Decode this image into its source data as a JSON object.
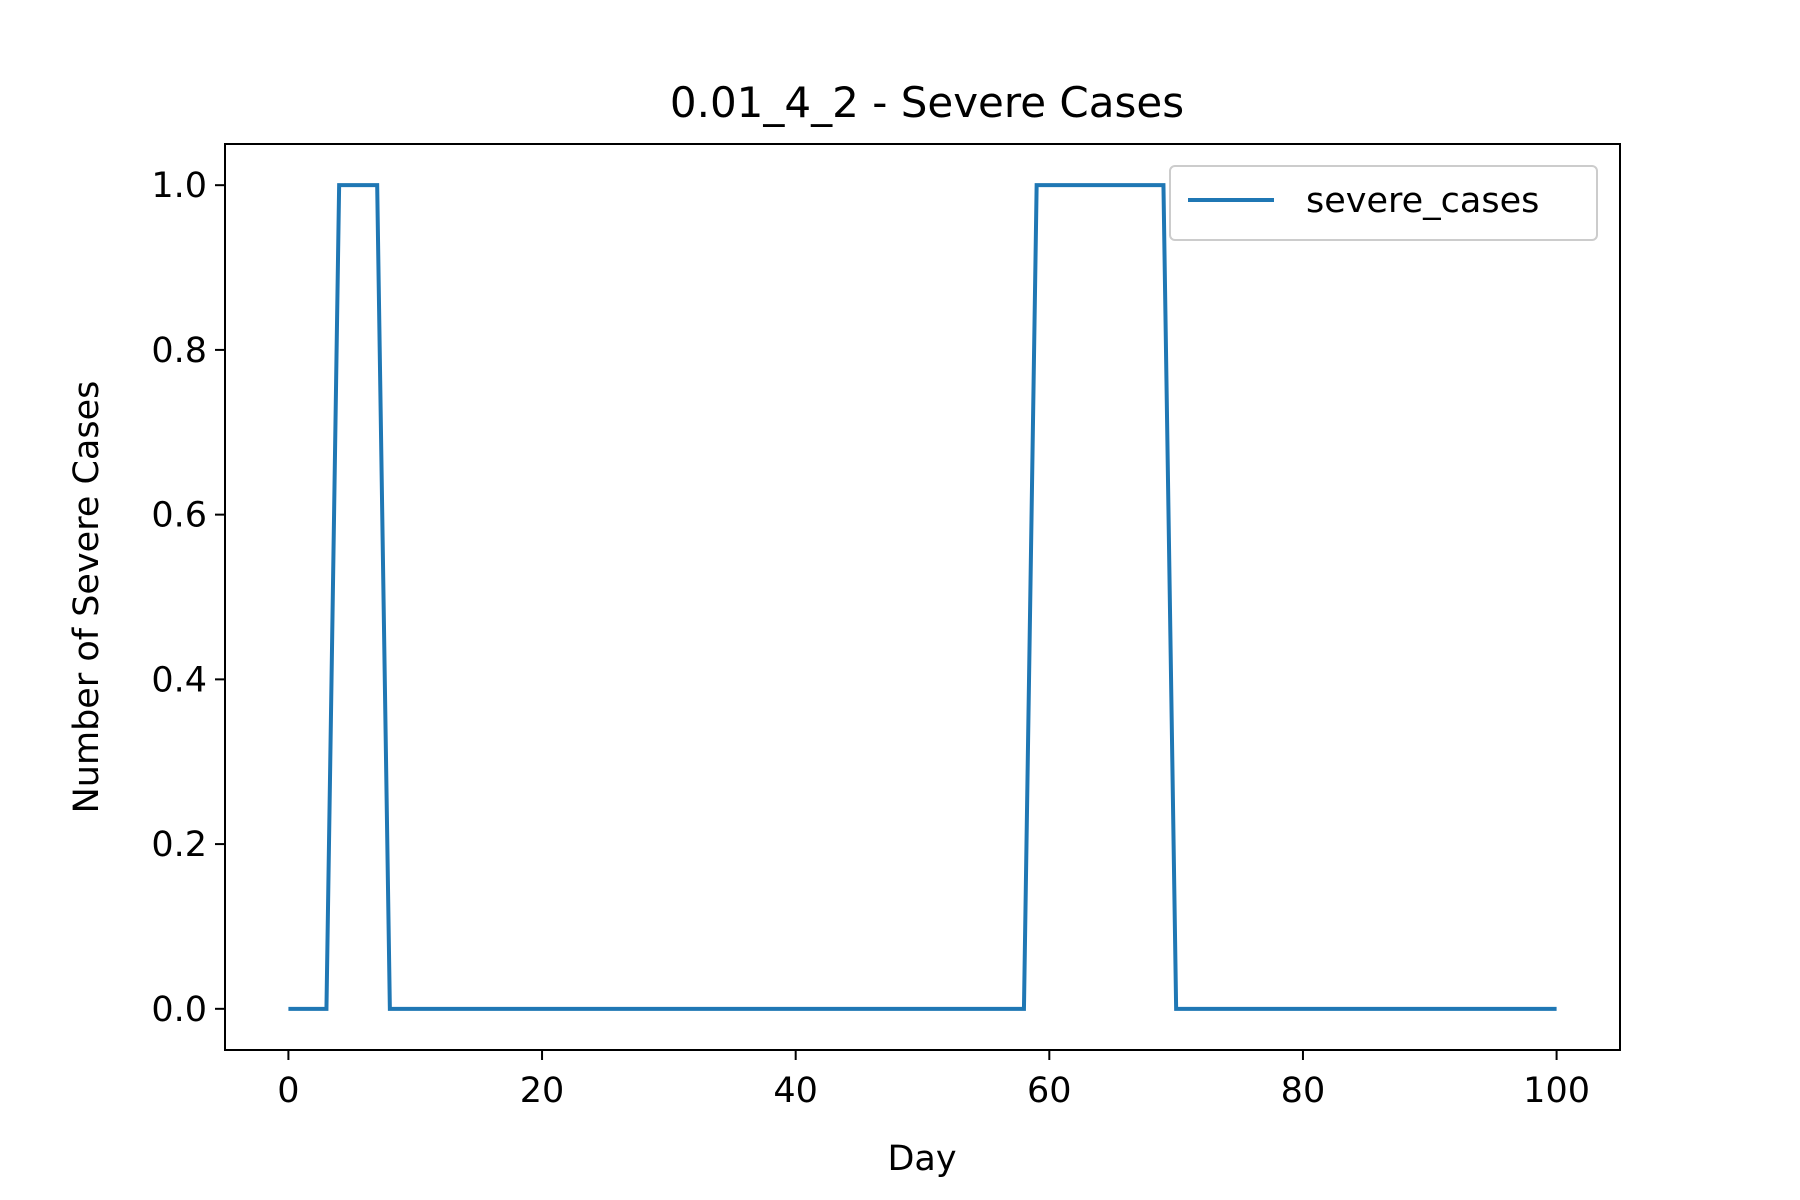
{
  "chart_data": {
    "type": "line",
    "title": "0.01_4_2 - Severe Cases",
    "xlabel": "Day",
    "ylabel": "Number of Severe Cases",
    "xlim": [
      -5,
      105
    ],
    "ylim": [
      -0.05,
      1.05
    ],
    "xticks": [
      0,
      20,
      40,
      60,
      80,
      100
    ],
    "xtick_labels": [
      "0",
      "20",
      "40",
      "60",
      "80",
      "100"
    ],
    "yticks": [
      0.0,
      0.2,
      0.4,
      0.6,
      0.8,
      1.0
    ],
    "ytick_labels": [
      "0.0",
      "0.2",
      "0.4",
      "0.6",
      "0.8",
      "1.0"
    ],
    "grid": false,
    "legend_position": "top-right",
    "series": [
      {
        "name": "severe_cases",
        "color": "#1f77b4",
        "x": [
          0,
          3,
          4,
          7,
          8,
          58,
          59,
          69,
          70,
          100
        ],
        "y": [
          0,
          0,
          1,
          1,
          0,
          0,
          1,
          1,
          0,
          0
        ]
      }
    ]
  }
}
